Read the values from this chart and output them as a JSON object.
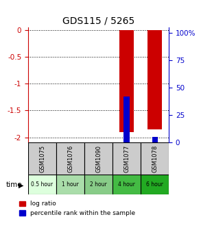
{
  "title": "GDS115 / 5265",
  "samples": [
    "GSM1075",
    "GSM1076",
    "GSM1090",
    "GSM1077",
    "GSM1078"
  ],
  "time_labels": [
    "0.5 hour",
    "1 hour",
    "2 hour",
    "4 hour",
    "6 hour"
  ],
  "log_ratios": [
    0,
    0,
    0,
    -1.9,
    -1.85
  ],
  "percentile_ranks": [
    0,
    0,
    0,
    42,
    5
  ],
  "bar_color_log": "#cc0000",
  "bar_color_pct": "#0000cc",
  "ylim_left": [
    -2.1,
    0.05
  ],
  "ylim_right": [
    0,
    105
  ],
  "yticks_left": [
    0,
    -0.5,
    -1.0,
    -1.5,
    -2.0
  ],
  "yticks_right": [
    0,
    25,
    50,
    75,
    100
  ],
  "left_axis_color": "#cc0000",
  "right_axis_color": "#0000cc",
  "background_color": "#ffffff",
  "legend_log_label": "log ratio",
  "legend_pct_label": "percentile rank within the sample",
  "time_row_label": "time",
  "sample_bg_color": "#cccccc",
  "time_colors": [
    "#ddffdd",
    "#aaddaa",
    "#88cc88",
    "#44bb44",
    "#22aa22"
  ]
}
